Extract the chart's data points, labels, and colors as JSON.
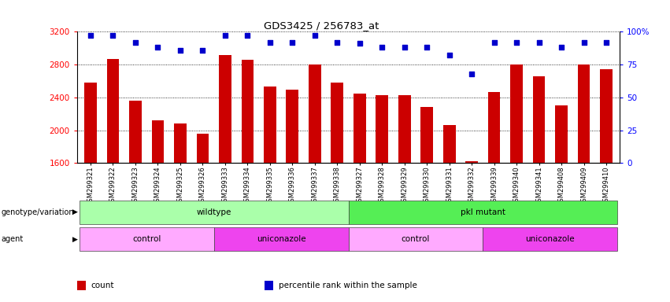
{
  "title": "GDS3425 / 256783_at",
  "samples": [
    "GSM299321",
    "GSM299322",
    "GSM299323",
    "GSM299324",
    "GSM299325",
    "GSM299326",
    "GSM299333",
    "GSM299334",
    "GSM299335",
    "GSM299336",
    "GSM299337",
    "GSM299338",
    "GSM299327",
    "GSM299328",
    "GSM299329",
    "GSM299330",
    "GSM299331",
    "GSM299332",
    "GSM299339",
    "GSM299340",
    "GSM299341",
    "GSM299408",
    "GSM299409",
    "GSM299410"
  ],
  "counts": [
    2580,
    2870,
    2360,
    2120,
    2080,
    1960,
    2920,
    2860,
    2530,
    2490,
    2800,
    2580,
    2450,
    2430,
    2430,
    2280,
    2060,
    1620,
    2470,
    2800,
    2660,
    2300,
    2800,
    2740
  ],
  "percentile_ranks": [
    97,
    97,
    92,
    88,
    86,
    86,
    97,
    97,
    92,
    92,
    97,
    92,
    91,
    88,
    88,
    88,
    82,
    68,
    92,
    92,
    92,
    88,
    92,
    92
  ],
  "ylim_left": [
    1600,
    3200
  ],
  "ylim_right": [
    0,
    100
  ],
  "yticks_left": [
    1600,
    2000,
    2400,
    2800,
    3200
  ],
  "yticks_right": [
    0,
    25,
    50,
    75,
    100
  ],
  "bar_color": "#cc0000",
  "dot_color": "#0000cc",
  "bg_color": "#ffffff",
  "genotype_groups": [
    {
      "label": "wildtype",
      "start": 0,
      "end": 12,
      "color": "#aaffaa"
    },
    {
      "label": "pkl mutant",
      "start": 12,
      "end": 24,
      "color": "#55ee55"
    }
  ],
  "agent_groups": [
    {
      "label": "control",
      "start": 0,
      "end": 6,
      "color": "#ffaaff"
    },
    {
      "label": "uniconazole",
      "start": 6,
      "end": 12,
      "color": "#ee44ee"
    },
    {
      "label": "control",
      "start": 12,
      "end": 18,
      "color": "#ffaaff"
    },
    {
      "label": "uniconazole",
      "start": 18,
      "end": 24,
      "color": "#ee44ee"
    }
  ],
  "legend_items": [
    {
      "label": "count",
      "color": "#cc0000"
    },
    {
      "label": "percentile rank within the sample",
      "color": "#0000cc"
    }
  ]
}
